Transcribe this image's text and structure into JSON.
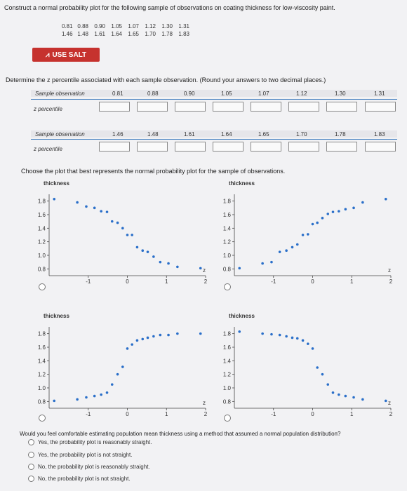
{
  "question": "Construct a normal probability plot for the following sample of observations on coating thickness for low-viscosity paint.",
  "observations_row1": [
    "0.81",
    "0.88",
    "0.90",
    "1.05",
    "1.07",
    "1.12",
    "1.30",
    "1.31"
  ],
  "observations_row2": [
    "1.46",
    "1.48",
    "1.61",
    "1.64",
    "1.65",
    "1.70",
    "1.78",
    "1.83"
  ],
  "salt_label": "USE SALT",
  "instruction": "Determine the z percentile associated with each sample observation. (Round your answers to two decimal places.)",
  "table1_label": "Sample observation",
  "table1_values": [
    "0.81",
    "0.88",
    "0.90",
    "1.05",
    "1.07",
    "1.12",
    "1.30",
    "1.31"
  ],
  "table2_values": [
    "1.46",
    "1.48",
    "1.61",
    "1.64",
    "1.65",
    "1.70",
    "1.78",
    "1.83"
  ],
  "z_label": "z percentile",
  "choose_text": "Choose the plot that best represents the normal probability plot for the sample of observations.",
  "plot_title": "thickness",
  "z_axis_label": "z",
  "final_question": "Would you feel comfortable estimating population mean thickness using a method that assumed a normal population distribution?",
  "options": [
    "Yes, the probability plot is reasonably straight.",
    "Yes, the probability plot is not straight.",
    "No, the probability plot is reasonably straight.",
    "No, the probability plot is not straight."
  ],
  "chart_data": [
    {
      "type": "scatter",
      "name": "Option A",
      "title": "thickness",
      "xlabel": "z",
      "xlim": [
        -2,
        2
      ],
      "ylim": [
        0.7,
        1.9
      ],
      "xticks": [
        "-1",
        "0",
        "1",
        "2"
      ],
      "yticks": [
        "1.8",
        "1.6",
        "1.4",
        "1.2",
        "1.0",
        "0.8"
      ],
      "x": [
        -1.87,
        -1.28,
        -1.05,
        -0.84,
        -0.67,
        -0.52,
        -0.39,
        -0.25,
        -0.12,
        0.0,
        0.12,
        0.25,
        0.39,
        0.52,
        0.67,
        0.84,
        1.05,
        1.28,
        1.87
      ],
      "y": [
        1.83,
        1.78,
        1.72,
        1.7,
        1.65,
        1.64,
        1.5,
        1.48,
        1.4,
        1.3,
        1.3,
        1.12,
        1.07,
        1.05,
        0.98,
        0.9,
        0.88,
        0.83,
        0.81
      ]
    },
    {
      "type": "scatter",
      "name": "Option B",
      "title": "thickness",
      "xlabel": "z",
      "xlim": [
        -2,
        2
      ],
      "ylim": [
        0.7,
        1.9
      ],
      "xticks": [
        "-1",
        "0",
        "1",
        "2"
      ],
      "yticks": [
        "1.8",
        "1.6",
        "1.4",
        "1.2",
        "1.0",
        "0.8"
      ],
      "x": [
        -1.87,
        -1.28,
        -1.05,
        -0.84,
        -0.67,
        -0.52,
        -0.39,
        -0.25,
        -0.12,
        0.0,
        0.12,
        0.25,
        0.39,
        0.52,
        0.67,
        0.84,
        1.05,
        1.28,
        1.87
      ],
      "y": [
        0.81,
        0.88,
        0.9,
        1.05,
        1.07,
        1.12,
        1.16,
        1.3,
        1.31,
        1.46,
        1.48,
        1.55,
        1.61,
        1.64,
        1.65,
        1.68,
        1.7,
        1.78,
        1.83
      ]
    },
    {
      "type": "scatter",
      "name": "Option C",
      "title": "thickness",
      "xlabel": "z",
      "xlim": [
        -2,
        2
      ],
      "ylim": [
        0.7,
        1.9
      ],
      "xticks": [
        "-1",
        "0",
        "1",
        "2"
      ],
      "yticks": [
        "1.8",
        "1.6",
        "1.4",
        "1.2",
        "1.0",
        "0.8"
      ],
      "x": [
        -1.87,
        -1.28,
        -1.05,
        -0.84,
        -0.67,
        -0.52,
        -0.39,
        -0.25,
        -0.12,
        0.0,
        0.12,
        0.25,
        0.39,
        0.52,
        0.67,
        0.84,
        1.05,
        1.28,
        1.87
      ],
      "y": [
        0.81,
        0.83,
        0.86,
        0.88,
        0.9,
        0.93,
        1.05,
        1.2,
        1.31,
        1.58,
        1.64,
        1.7,
        1.72,
        1.74,
        1.76,
        1.78,
        1.78,
        1.8,
        1.8
      ]
    },
    {
      "type": "scatter",
      "name": "Option D",
      "title": "thickness",
      "xlabel": "z",
      "xlim": [
        -2,
        2
      ],
      "ylim": [
        0.7,
        1.9
      ],
      "xticks": [
        "-1",
        "0",
        "1",
        "2"
      ],
      "yticks": [
        "1.8",
        "1.6",
        "1.4",
        "1.2",
        "1.0",
        "0.8"
      ],
      "x": [
        -1.87,
        -1.28,
        -1.05,
        -0.84,
        -0.67,
        -0.52,
        -0.39,
        -0.25,
        -0.12,
        0.0,
        0.12,
        0.25,
        0.39,
        0.52,
        0.67,
        0.84,
        1.05,
        1.28,
        1.87
      ],
      "y": [
        1.83,
        1.8,
        1.79,
        1.78,
        1.76,
        1.74,
        1.73,
        1.7,
        1.65,
        1.58,
        1.3,
        1.2,
        1.05,
        0.93,
        0.9,
        0.88,
        0.86,
        0.83,
        0.81
      ]
    }
  ]
}
